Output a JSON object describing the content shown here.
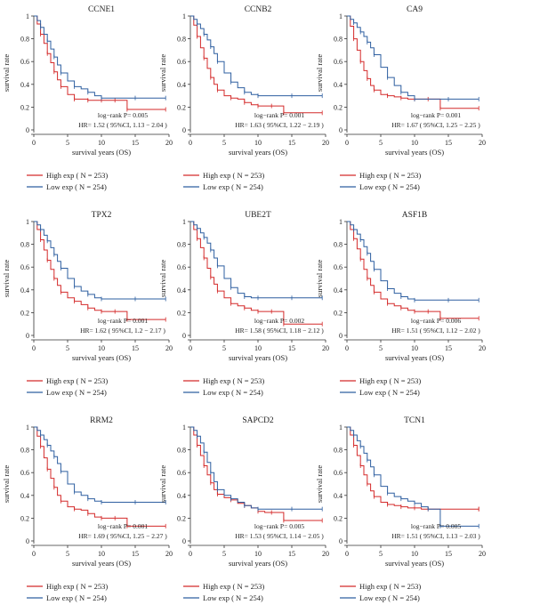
{
  "figure": {
    "legend_labels": [
      "High exp ( N = 253)",
      "Low exp ( N = 254)"
    ]
  },
  "colors": {
    "high": "#d42a2a",
    "low": "#2e5fa0",
    "axis": "#333333"
  },
  "chart_data": [
    {
      "type": "line",
      "title": "CCNE1",
      "xlabel": "survival years (OS)",
      "ylabel": "survival rate",
      "xlim": [
        0,
        20
      ],
      "ylim": [
        0,
        1.0
      ],
      "xticks": [
        0,
        5,
        10,
        15,
        20
      ],
      "yticks": [
        0.0,
        0.2,
        0.4,
        0.6,
        0.8,
        1.0
      ],
      "annotations": [
        "log−rank P= 0.005",
        "HR= 1.52 ( 95%CI, 1.13 − 2.04 )"
      ],
      "series": [
        {
          "name": "High exp ( N = 253)",
          "x": [
            0,
            0.5,
            1,
            1.5,
            2,
            2.5,
            3,
            3.5,
            4,
            5,
            6,
            7,
            8,
            9,
            10,
            11,
            12,
            13.7,
            13.8,
            19.5
          ],
          "y": [
            1.0,
            0.93,
            0.84,
            0.76,
            0.67,
            0.59,
            0.51,
            0.44,
            0.38,
            0.31,
            0.27,
            0.27,
            0.26,
            0.26,
            0.26,
            0.26,
            0.26,
            0.26,
            0.18,
            0.18
          ]
        },
        {
          "name": "Low exp ( N = 254)",
          "x": [
            0,
            0.5,
            1,
            1.5,
            2,
            2.5,
            3,
            3.5,
            4,
            5,
            6,
            7,
            8,
            9,
            10,
            12,
            15,
            19.5
          ],
          "y": [
            1.0,
            0.96,
            0.9,
            0.84,
            0.78,
            0.71,
            0.64,
            0.57,
            0.5,
            0.43,
            0.38,
            0.36,
            0.33,
            0.3,
            0.28,
            0.28,
            0.28,
            0.28
          ]
        }
      ]
    },
    {
      "type": "line",
      "title": "CCNB2",
      "xlabel": "survival years (OS)",
      "ylabel": "survival rate",
      "xlim": [
        0,
        20
      ],
      "ylim": [
        0,
        1.0
      ],
      "xticks": [
        0,
        5,
        10,
        15,
        20
      ],
      "yticks": [
        0.0,
        0.2,
        0.4,
        0.6,
        0.8,
        1.0
      ],
      "annotations": [
        "log−rank P= 0.001",
        "HR= 1.63 ( 95%CI, 1.22 − 2.19 )"
      ],
      "series": [
        {
          "name": "High exp ( N = 253)",
          "x": [
            0,
            0.5,
            1,
            1.5,
            2,
            2.5,
            3,
            3.5,
            4,
            5,
            6,
            7,
            8,
            9,
            10,
            11,
            12,
            13.7,
            13.8,
            19.5
          ],
          "y": [
            1.0,
            0.92,
            0.82,
            0.72,
            0.63,
            0.54,
            0.46,
            0.4,
            0.35,
            0.3,
            0.28,
            0.27,
            0.24,
            0.22,
            0.21,
            0.21,
            0.21,
            0.21,
            0.15,
            0.15
          ]
        },
        {
          "name": "Low exp ( N = 254)",
          "x": [
            0,
            0.5,
            1,
            1.5,
            2,
            2.5,
            3,
            3.5,
            4,
            5,
            6,
            7,
            8,
            9,
            10,
            12,
            15,
            19.5
          ],
          "y": [
            1.0,
            0.97,
            0.93,
            0.89,
            0.84,
            0.79,
            0.73,
            0.67,
            0.6,
            0.5,
            0.42,
            0.37,
            0.33,
            0.31,
            0.3,
            0.3,
            0.3,
            0.3
          ]
        }
      ]
    },
    {
      "type": "line",
      "title": "CA9",
      "xlabel": "survival years (OS)",
      "ylabel": "survival rate",
      "xlim": [
        0,
        20
      ],
      "ylim": [
        0,
        1.0
      ],
      "xticks": [
        0,
        5,
        10,
        15,
        20
      ],
      "yticks": [
        0.0,
        0.2,
        0.4,
        0.6,
        0.8,
        1.0
      ],
      "annotations": [
        "log−rank P= 0.001",
        "HR= 1.67 ( 95%CI, 1.25 − 2.25 )"
      ],
      "series": [
        {
          "name": "High exp ( N = 253)",
          "x": [
            0,
            0.5,
            1,
            1.5,
            2,
            2.5,
            3,
            3.5,
            4,
            5,
            6,
            7,
            8,
            9,
            10,
            11,
            12,
            13.7,
            13.8,
            19.5
          ],
          "y": [
            1.0,
            0.91,
            0.8,
            0.7,
            0.6,
            0.52,
            0.45,
            0.39,
            0.35,
            0.31,
            0.3,
            0.29,
            0.28,
            0.27,
            0.27,
            0.27,
            0.27,
            0.27,
            0.19,
            0.19
          ]
        },
        {
          "name": "Low exp ( N = 254)",
          "x": [
            0,
            0.5,
            1,
            1.5,
            2,
            2.5,
            3,
            3.5,
            4,
            5,
            6,
            7,
            8,
            9,
            10,
            12,
            15,
            19.5
          ],
          "y": [
            1.0,
            0.97,
            0.94,
            0.9,
            0.86,
            0.82,
            0.77,
            0.72,
            0.66,
            0.55,
            0.46,
            0.39,
            0.33,
            0.3,
            0.27,
            0.27,
            0.27,
            0.27
          ]
        }
      ]
    },
    {
      "type": "line",
      "title": "TPX2",
      "xlabel": "survival years (OS)",
      "ylabel": "survival rate",
      "xlim": [
        0,
        20
      ],
      "ylim": [
        0,
        1.0
      ],
      "xticks": [
        0,
        5,
        10,
        15,
        20
      ],
      "yticks": [
        0.0,
        0.2,
        0.4,
        0.6,
        0.8,
        1.0
      ],
      "annotations": [
        "log−rank P= 0.001",
        "HR= 1.62 ( 95%CI, 1.2 − 2.17 )"
      ],
      "series": [
        {
          "name": "High exp ( N = 253)",
          "x": [
            0,
            0.5,
            1,
            1.5,
            2,
            2.5,
            3,
            3.5,
            4,
            5,
            6,
            7,
            8,
            9,
            10,
            11,
            12,
            13.7,
            13.8,
            19.5
          ],
          "y": [
            1.0,
            0.93,
            0.84,
            0.75,
            0.66,
            0.58,
            0.5,
            0.44,
            0.38,
            0.33,
            0.3,
            0.27,
            0.24,
            0.22,
            0.21,
            0.21,
            0.21,
            0.21,
            0.14,
            0.14
          ]
        },
        {
          "name": "Low exp ( N = 254)",
          "x": [
            0,
            0.5,
            1,
            1.5,
            2,
            2.5,
            3,
            3.5,
            4,
            5,
            6,
            7,
            8,
            9,
            10,
            12,
            15,
            19.5
          ],
          "y": [
            1.0,
            0.97,
            0.93,
            0.88,
            0.83,
            0.77,
            0.71,
            0.65,
            0.59,
            0.5,
            0.43,
            0.39,
            0.36,
            0.33,
            0.32,
            0.32,
            0.32,
            0.32
          ]
        }
      ]
    },
    {
      "type": "line",
      "title": "UBE2T",
      "xlabel": "survival years (OS)",
      "ylabel": "survival rate",
      "xlim": [
        0,
        20
      ],
      "ylim": [
        0,
        1.0
      ],
      "xticks": [
        0,
        5,
        10,
        15,
        20
      ],
      "yticks": [
        0.0,
        0.2,
        0.4,
        0.6,
        0.8,
        1.0
      ],
      "annotations": [
        "log−rank P= 0.002",
        "HR= 1.58 ( 95%CI, 1.18 − 2.12 )"
      ],
      "series": [
        {
          "name": "High exp ( N = 253)",
          "x": [
            0,
            0.5,
            1,
            1.5,
            2,
            2.5,
            3,
            3.5,
            4,
            5,
            6,
            7,
            8,
            9,
            10,
            11,
            12,
            13.7,
            13.8,
            19.5
          ],
          "y": [
            1.0,
            0.93,
            0.85,
            0.77,
            0.68,
            0.59,
            0.51,
            0.45,
            0.39,
            0.33,
            0.28,
            0.26,
            0.24,
            0.22,
            0.21,
            0.21,
            0.21,
            0.21,
            0.1,
            0.1
          ]
        },
        {
          "name": "Low exp ( N = 254)",
          "x": [
            0,
            0.5,
            1,
            1.5,
            2,
            2.5,
            3,
            3.5,
            4,
            5,
            6,
            7,
            8,
            9,
            10,
            12,
            15,
            19.5
          ],
          "y": [
            1.0,
            0.97,
            0.94,
            0.9,
            0.86,
            0.81,
            0.75,
            0.68,
            0.61,
            0.5,
            0.42,
            0.37,
            0.34,
            0.33,
            0.33,
            0.33,
            0.33,
            0.33
          ]
        }
      ]
    },
    {
      "type": "line",
      "title": "ASF1B",
      "xlabel": "survival years (OS)",
      "ylabel": "survival rate",
      "xlim": [
        0,
        20
      ],
      "ylim": [
        0,
        1.0
      ],
      "xticks": [
        0,
        5,
        10,
        15,
        20
      ],
      "yticks": [
        0.0,
        0.2,
        0.4,
        0.6,
        0.8,
        1.0
      ],
      "annotations": [
        "log−rank P= 0.006",
        "HR= 1.51 ( 95%CI, 1.12 − 2.02 )"
      ],
      "series": [
        {
          "name": "High exp ( N = 253)",
          "x": [
            0,
            0.5,
            1,
            1.5,
            2,
            2.5,
            3,
            3.5,
            4,
            5,
            6,
            7,
            8,
            9,
            10,
            11,
            12,
            13.7,
            13.8,
            19.5
          ],
          "y": [
            1.0,
            0.93,
            0.85,
            0.76,
            0.67,
            0.58,
            0.5,
            0.44,
            0.38,
            0.32,
            0.28,
            0.26,
            0.24,
            0.22,
            0.21,
            0.21,
            0.21,
            0.21,
            0.15,
            0.15
          ]
        },
        {
          "name": "Low exp ( N = 254)",
          "x": [
            0,
            0.5,
            1,
            1.5,
            2,
            2.5,
            3,
            3.5,
            4,
            5,
            6,
            7,
            8,
            9,
            10,
            12,
            15,
            19.5
          ],
          "y": [
            1.0,
            0.97,
            0.93,
            0.89,
            0.84,
            0.78,
            0.72,
            0.65,
            0.58,
            0.48,
            0.41,
            0.37,
            0.34,
            0.32,
            0.31,
            0.31,
            0.31,
            0.31
          ]
        }
      ]
    },
    {
      "type": "line",
      "title": "RRM2",
      "xlabel": "survival years (OS)",
      "ylabel": "survival rate",
      "xlim": [
        0,
        20
      ],
      "ylim": [
        0,
        1.0
      ],
      "xticks": [
        0,
        5,
        10,
        15,
        20
      ],
      "yticks": [
        0.0,
        0.2,
        0.4,
        0.6,
        0.8,
        1.0
      ],
      "annotations": [
        "log−rank P= 0.001",
        "HR= 1.69 ( 95%CI, 1.25 − 2.27 )"
      ],
      "series": [
        {
          "name": "High exp ( N = 253)",
          "x": [
            0,
            0.5,
            1,
            1.5,
            2,
            2.5,
            3,
            3.5,
            4,
            5,
            6,
            7,
            8,
            9,
            10,
            11,
            12,
            13.7,
            13.8,
            19.5
          ],
          "y": [
            1.0,
            0.92,
            0.83,
            0.73,
            0.63,
            0.55,
            0.47,
            0.4,
            0.35,
            0.3,
            0.28,
            0.27,
            0.24,
            0.21,
            0.2,
            0.2,
            0.2,
            0.2,
            0.13,
            0.13
          ]
        },
        {
          "name": "Low exp ( N = 254)",
          "x": [
            0,
            0.5,
            1,
            1.5,
            2,
            2.5,
            3,
            3.5,
            4,
            5,
            6,
            7,
            8,
            9,
            10,
            12,
            15,
            19.5
          ],
          "y": [
            1.0,
            0.97,
            0.93,
            0.89,
            0.84,
            0.79,
            0.74,
            0.68,
            0.61,
            0.5,
            0.43,
            0.4,
            0.37,
            0.35,
            0.34,
            0.34,
            0.34,
            0.34
          ]
        }
      ]
    },
    {
      "type": "line",
      "title": "SAPCD2",
      "xlabel": "survival years (OS)",
      "ylabel": "survival rate",
      "xlim": [
        0,
        20
      ],
      "ylim": [
        0,
        1.0
      ],
      "xticks": [
        0,
        5,
        10,
        15,
        20
      ],
      "yticks": [
        0.0,
        0.2,
        0.4,
        0.6,
        0.8,
        1.0
      ],
      "annotations": [
        "log−rank P= 0.005",
        "HR= 1.53 ( 95%CI, 1.14 − 2.05 )"
      ],
      "series": [
        {
          "name": "High exp ( N = 253)",
          "x": [
            0,
            0.5,
            1,
            1.5,
            2,
            2.5,
            3,
            3.5,
            4,
            5,
            6,
            7,
            8,
            9,
            10,
            11,
            12,
            13.7,
            13.8,
            19.5
          ],
          "y": [
            1.0,
            0.93,
            0.84,
            0.75,
            0.66,
            0.58,
            0.51,
            0.45,
            0.41,
            0.38,
            0.36,
            0.33,
            0.31,
            0.29,
            0.26,
            0.25,
            0.25,
            0.25,
            0.18,
            0.18
          ]
        },
        {
          "name": "Low exp ( N = 254)",
          "x": [
            0,
            0.5,
            1,
            1.5,
            2,
            2.5,
            3,
            3.5,
            4,
            5,
            6,
            7,
            8,
            9,
            10,
            12,
            15,
            19.5
          ],
          "y": [
            1.0,
            0.97,
            0.92,
            0.86,
            0.78,
            0.69,
            0.6,
            0.52,
            0.45,
            0.4,
            0.37,
            0.34,
            0.31,
            0.29,
            0.28,
            0.28,
            0.28,
            0.28
          ]
        }
      ]
    },
    {
      "type": "line",
      "title": "TCN1",
      "xlabel": "survival years (OS)",
      "ylabel": "survival rate",
      "xlim": [
        0,
        20
      ],
      "ylim": [
        0,
        1.0
      ],
      "xticks": [
        0,
        5,
        10,
        15,
        20
      ],
      "yticks": [
        0.0,
        0.2,
        0.4,
        0.6,
        0.8,
        1.0
      ],
      "annotations": [
        "log−rank P= 0.005",
        "HR= 1.51 ( 95%CI, 1.13 − 2.03 )"
      ],
      "series": [
        {
          "name": "High exp ( N = 253)",
          "x": [
            0,
            0.5,
            1,
            1.5,
            2,
            2.5,
            3,
            3.5,
            4,
            5,
            6,
            7,
            8,
            9,
            10,
            11,
            12,
            15,
            19.5
          ],
          "y": [
            1.0,
            0.93,
            0.84,
            0.75,
            0.66,
            0.58,
            0.5,
            0.44,
            0.39,
            0.34,
            0.32,
            0.31,
            0.3,
            0.29,
            0.29,
            0.28,
            0.28,
            0.28,
            0.28
          ]
        },
        {
          "name": "Low exp ( N = 254)",
          "x": [
            0,
            0.5,
            1,
            1.5,
            2,
            2.5,
            3,
            3.5,
            4,
            5,
            6,
            7,
            8,
            9,
            10,
            11,
            12,
            13.7,
            13.8,
            19.5
          ],
          "y": [
            1.0,
            0.97,
            0.93,
            0.88,
            0.83,
            0.77,
            0.71,
            0.65,
            0.58,
            0.48,
            0.42,
            0.39,
            0.37,
            0.35,
            0.33,
            0.3,
            0.28,
            0.28,
            0.13,
            0.13
          ]
        }
      ]
    }
  ]
}
